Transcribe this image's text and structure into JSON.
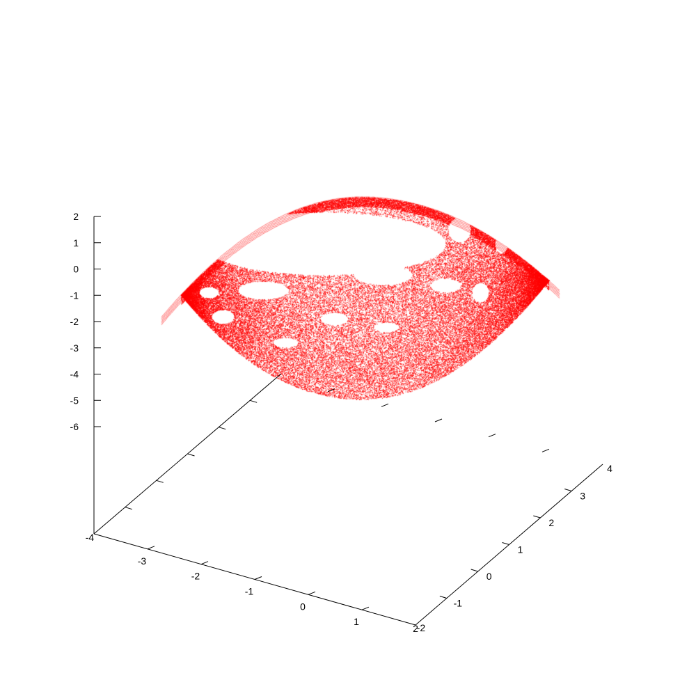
{
  "chart_data": {
    "type": "scatter3d",
    "title": "",
    "xlabel": "",
    "ylabel": "",
    "zlabel": "",
    "xlim": [
      -4,
      2
    ],
    "ylim": [
      -2,
      4
    ],
    "zlim": [
      -6,
      2
    ],
    "x_ticks": [
      "-4",
      "-3",
      "-2",
      "-1",
      "0",
      "1",
      "2"
    ],
    "y_ticks": [
      "-2",
      "-1",
      "0",
      "1",
      "2",
      "3",
      "4"
    ],
    "z_ticks": [
      "2",
      "1",
      "0",
      "-1",
      "-2",
      "-3",
      "-4",
      "-5",
      "-6"
    ],
    "legend": "none",
    "grid": false,
    "point_color": "#ff0000",
    "series": [
      {
        "shape": "strange-attractor torus (point cloud)",
        "x_range": [
          -4.0,
          2.0
        ],
        "y_range": [
          -2.0,
          4.0
        ],
        "z_range": [
          -4.8,
          2.0
        ],
        "approx_points": 60000
      }
    ]
  }
}
